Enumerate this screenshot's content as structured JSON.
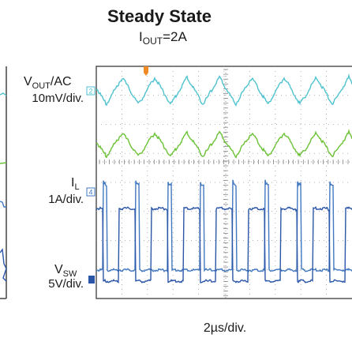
{
  "chart_data": {
    "type": "line",
    "title": "Steady State",
    "subtitle": {
      "prefix": "I",
      "sub": "OUT",
      "suffix": "=2A"
    },
    "x_label": "2µs/div.",
    "grid": true,
    "channels": [
      {
        "marker": "2",
        "label_main": "V",
        "label_sub": "OUT",
        "label_suffix": "/AC",
        "scale": "10mV/div.",
        "color": "#4fc3cf",
        "shape": "triangle"
      },
      {
        "marker": "",
        "label_main": "",
        "label_sub": "",
        "label_suffix": "",
        "scale": "",
        "color": "#6cc236",
        "shape": "triangle"
      },
      {
        "marker": "4",
        "label_main": "I",
        "label_sub": "L",
        "label_suffix": "",
        "scale": "1A/div.",
        "color": "#4178c0",
        "shape": "square"
      },
      {
        "marker": "",
        "label_main": "V",
        "label_sub": "SW",
        "label_suffix": "",
        "scale": "5V/div.",
        "color": "#2b56a8",
        "shape": "square"
      }
    ]
  }
}
